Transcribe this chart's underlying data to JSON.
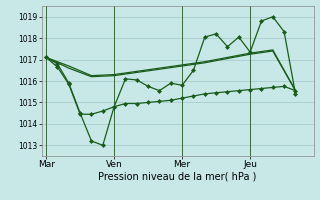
{
  "bg_color": "#c8e8e8",
  "line_color": "#1a5c1a",
  "grid_color": "#a8cccc",
  "xlabel": "Pression niveau de la mer( hPa )",
  "day_labels": [
    "Mar",
    "Ven",
    "Mer",
    "Jeu"
  ],
  "day_positions": [
    0,
    3,
    6,
    9
  ],
  "ylim": [
    1012.5,
    1019.5
  ],
  "yticks": [
    1013,
    1014,
    1015,
    1016,
    1017,
    1018,
    1019
  ],
  "xlim": [
    -0.2,
    11.8
  ],
  "main_x": [
    0,
    0.5,
    1,
    1.5,
    2,
    2.5,
    3,
    3.5,
    4,
    4.5,
    5,
    5.5,
    6,
    6.5,
    7,
    7.5,
    8,
    8.5,
    9,
    9.5,
    10,
    10.5,
    11
  ],
  "main_y": [
    1017.1,
    1016.8,
    1015.9,
    1014.5,
    1013.2,
    1013.0,
    1014.8,
    1016.1,
    1016.05,
    1015.75,
    1015.55,
    1015.9,
    1015.8,
    1016.5,
    1018.05,
    1018.2,
    1017.6,
    1018.05,
    1017.35,
    1018.8,
    1019.0,
    1018.3,
    1015.4
  ],
  "upper_x": [
    0,
    1,
    2,
    3,
    4,
    5,
    6,
    7,
    8,
    9,
    10,
    11
  ],
  "upper_y": [
    1017.1,
    1016.7,
    1016.25,
    1016.3,
    1016.45,
    1016.6,
    1016.75,
    1016.9,
    1017.1,
    1017.3,
    1017.45,
    1015.55
  ],
  "mid_x": [
    0,
    1,
    2,
    3,
    4,
    5,
    6,
    7,
    8,
    9,
    10,
    11
  ],
  "mid_y": [
    1017.1,
    1016.6,
    1016.2,
    1016.25,
    1016.4,
    1016.55,
    1016.7,
    1016.85,
    1017.05,
    1017.25,
    1017.4,
    1015.55
  ],
  "lower_x": [
    0,
    0.5,
    1,
    1.5,
    2,
    2.5,
    3,
    3.5,
    4,
    4.5,
    5,
    5.5,
    6,
    6.5,
    7,
    7.5,
    8,
    8.5,
    9,
    9.5,
    10,
    10.5,
    11
  ],
  "lower_y": [
    1017.1,
    1016.65,
    1015.85,
    1014.45,
    1014.45,
    1014.6,
    1014.8,
    1014.95,
    1014.95,
    1015.0,
    1015.05,
    1015.1,
    1015.2,
    1015.3,
    1015.4,
    1015.45,
    1015.5,
    1015.55,
    1015.6,
    1015.65,
    1015.7,
    1015.75,
    1015.55
  ]
}
